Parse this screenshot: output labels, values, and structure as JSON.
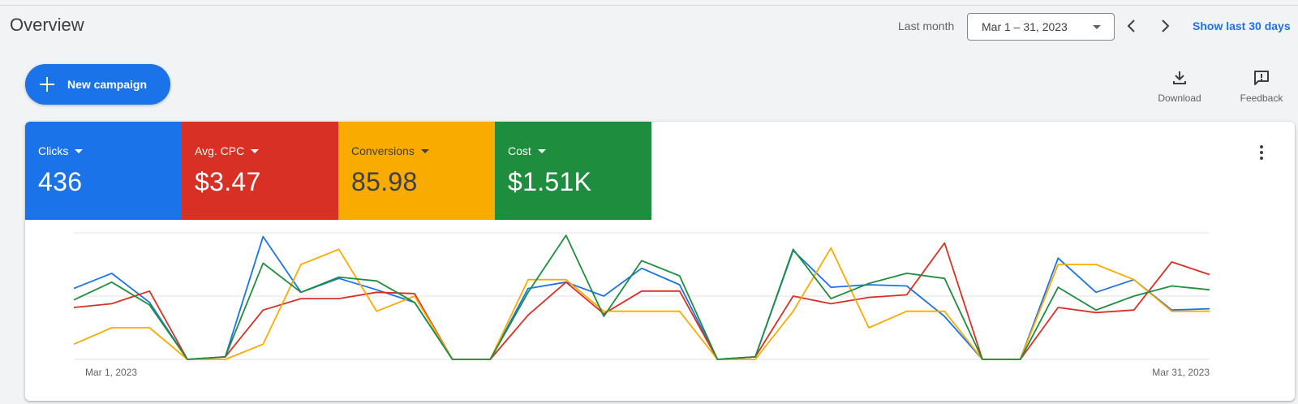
{
  "header": {
    "title": "Overview",
    "period_label": "Last month",
    "date_range": "Mar 1 – 31, 2023",
    "show_last_label": "Show last 30 days"
  },
  "actions": {
    "new_campaign_label": "New campaign",
    "download_label": "Download",
    "feedback_label": "Feedback"
  },
  "metrics": [
    {
      "name": "Clicks",
      "value": "436",
      "color": "#1a73e8"
    },
    {
      "name": "Avg. CPC",
      "value": "$3.47",
      "color": "#d93025"
    },
    {
      "name": "Conversions",
      "value": "85.98",
      "color": "#f9ab00"
    },
    {
      "name": "Cost",
      "value": "$1.51K",
      "color": "#1e8e3e"
    }
  ],
  "chart_data": {
    "type": "line",
    "x_start_label": "Mar 1, 2023",
    "x_end_label": "Mar 31, 2023",
    "ylim": [
      0,
      100
    ],
    "grid": true,
    "series": [
      {
        "color": "#1a73e8",
        "values": [
          56,
          68,
          45,
          0,
          2,
          97,
          53,
          64,
          55,
          45,
          0,
          0,
          56,
          61,
          50,
          72,
          59,
          0,
          2,
          86,
          57,
          59,
          58,
          34,
          0,
          0,
          80,
          53,
          63,
          39,
          40
        ]
      },
      {
        "color": "#d93025",
        "values": [
          41,
          44,
          54,
          0,
          2,
          39,
          48,
          48,
          53,
          52,
          0,
          0,
          35,
          61,
          36,
          54,
          54,
          0,
          2,
          50,
          44,
          49,
          51,
          92,
          0,
          0,
          41,
          37,
          39,
          77,
          67
        ]
      },
      {
        "color": "#f9ab00",
        "values": [
          12,
          25,
          25,
          0,
          0,
          12,
          75,
          87,
          38,
          50,
          0,
          0,
          63,
          63,
          38,
          38,
          38,
          0,
          0,
          38,
          88,
          25,
          38,
          38,
          0,
          0,
          75,
          75,
          63,
          38,
          38
        ]
      },
      {
        "color": "#1e8e3e",
        "values": [
          47,
          61,
          43,
          0,
          2,
          76,
          53,
          65,
          62,
          45,
          0,
          0,
          53,
          98,
          34,
          78,
          66,
          0,
          2,
          87,
          48,
          60,
          68,
          64,
          0,
          0,
          57,
          39,
          50,
          58,
          55
        ]
      }
    ]
  }
}
